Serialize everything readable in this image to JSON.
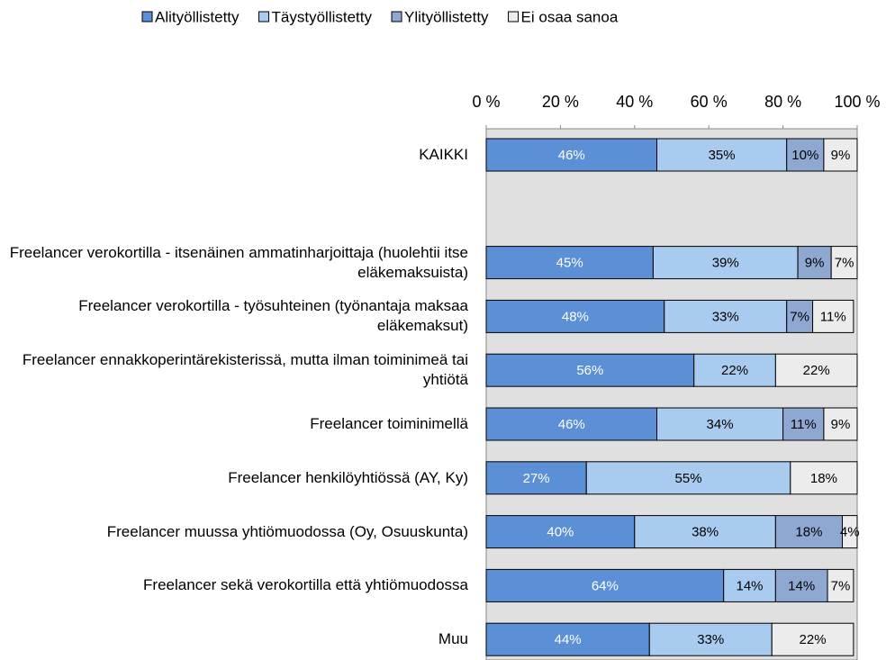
{
  "chart_data": {
    "type": "stacked_barh",
    "categories": [
      "KAIKKI",
      null,
      "Freelancer verokortilla - itsenäinen ammatinharjoittaja (huolehtii itse eläkemaksuista)",
      "Freelancer verokortilla - työsuhteinen (työnantaja maksaa eläkemaksut)",
      "Freelancer ennakkoperintärekisterissä, mutta ilman toiminimeä tai yhtiötä",
      "Freelancer toiminimellä",
      "Freelancer henkilöyhtiössä (AY, Ky)",
      "Freelancer muussa yhtiömuodossa (Oy, Osuuskunta)",
      "Freelancer sekä verokortilla että yhtiömuodossa",
      "Muu"
    ],
    "series": [
      {
        "name": "Alityöllistetty",
        "color": "#5b8fd6",
        "values": [
          46,
          null,
          45,
          48,
          56,
          46,
          27,
          40,
          64,
          44
        ],
        "value_labels": [
          "46%",
          null,
          "45%",
          "48%",
          "56%",
          "46%",
          "27%",
          "40%",
          "64%",
          "44%"
        ]
      },
      {
        "name": "Täystyöllistetty",
        "color": "#a9cbf0",
        "values": [
          35,
          null,
          39,
          33,
          22,
          34,
          55,
          38,
          14,
          33
        ],
        "value_labels": [
          "35%",
          null,
          "39%",
          "33%",
          "22%",
          "34%",
          "55%",
          "38%",
          "14%",
          "33%"
        ]
      },
      {
        "name": "Ylityöllistetty",
        "color": "#8fa8d2",
        "values": [
          10,
          null,
          9,
          7,
          0,
          11,
          0,
          18,
          14,
          0
        ],
        "value_labels": [
          "10%",
          null,
          "9%",
          "7%",
          null,
          "11%",
          null,
          "18%",
          "14%",
          null
        ]
      },
      {
        "name": "Ei osaa sanoa",
        "color": "#ececec",
        "values": [
          9,
          null,
          7,
          11,
          22,
          9,
          18,
          4,
          7,
          22
        ],
        "value_labels": [
          "9%",
          null,
          "7%",
          "11%",
          "22%",
          "9%",
          "18%",
          "4%",
          "7%",
          "22%"
        ]
      }
    ],
    "xlim": [
      0,
      100
    ],
    "xticks": [
      {
        "value": 0,
        "label": "0 %"
      },
      {
        "value": 20,
        "label": "20 %"
      },
      {
        "value": 40,
        "label": "40 %"
      },
      {
        "value": 60,
        "label": "60 %"
      },
      {
        "value": 80,
        "label": "80 %"
      },
      {
        "value": 100,
        "label": "100 %"
      }
    ],
    "grid": false
  }
}
